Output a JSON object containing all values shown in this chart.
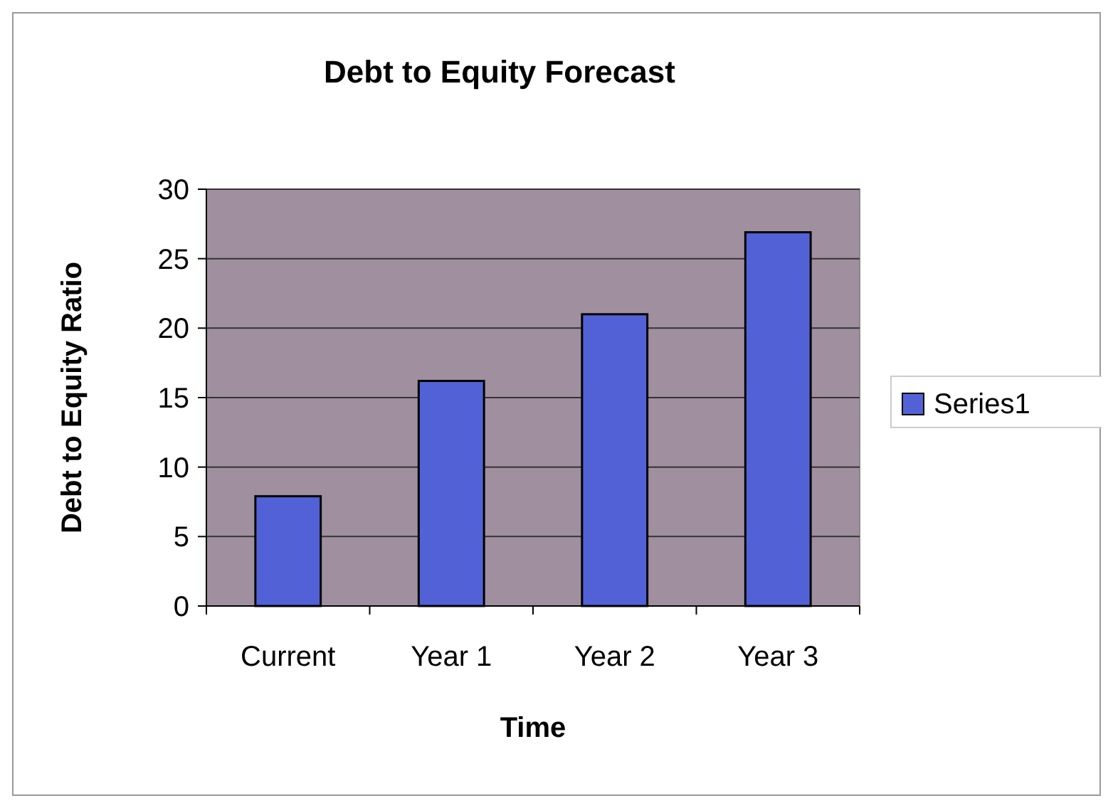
{
  "chart_data": {
    "type": "bar",
    "title": "Debt to Equity Forecast",
    "xlabel": "Time",
    "ylabel": "Debt to Equity Ratio",
    "categories": [
      "Current",
      "Year 1",
      "Year 2",
      "Year 3"
    ],
    "series": [
      {
        "name": "Series1",
        "color": "#5262d6",
        "values": [
          7.9,
          16.2,
          21,
          26.9
        ]
      }
    ],
    "ylim": [
      0,
      30
    ],
    "yticks": [
      0,
      5,
      10,
      15,
      20,
      25,
      30
    ],
    "grid": "y",
    "legend": "right"
  }
}
